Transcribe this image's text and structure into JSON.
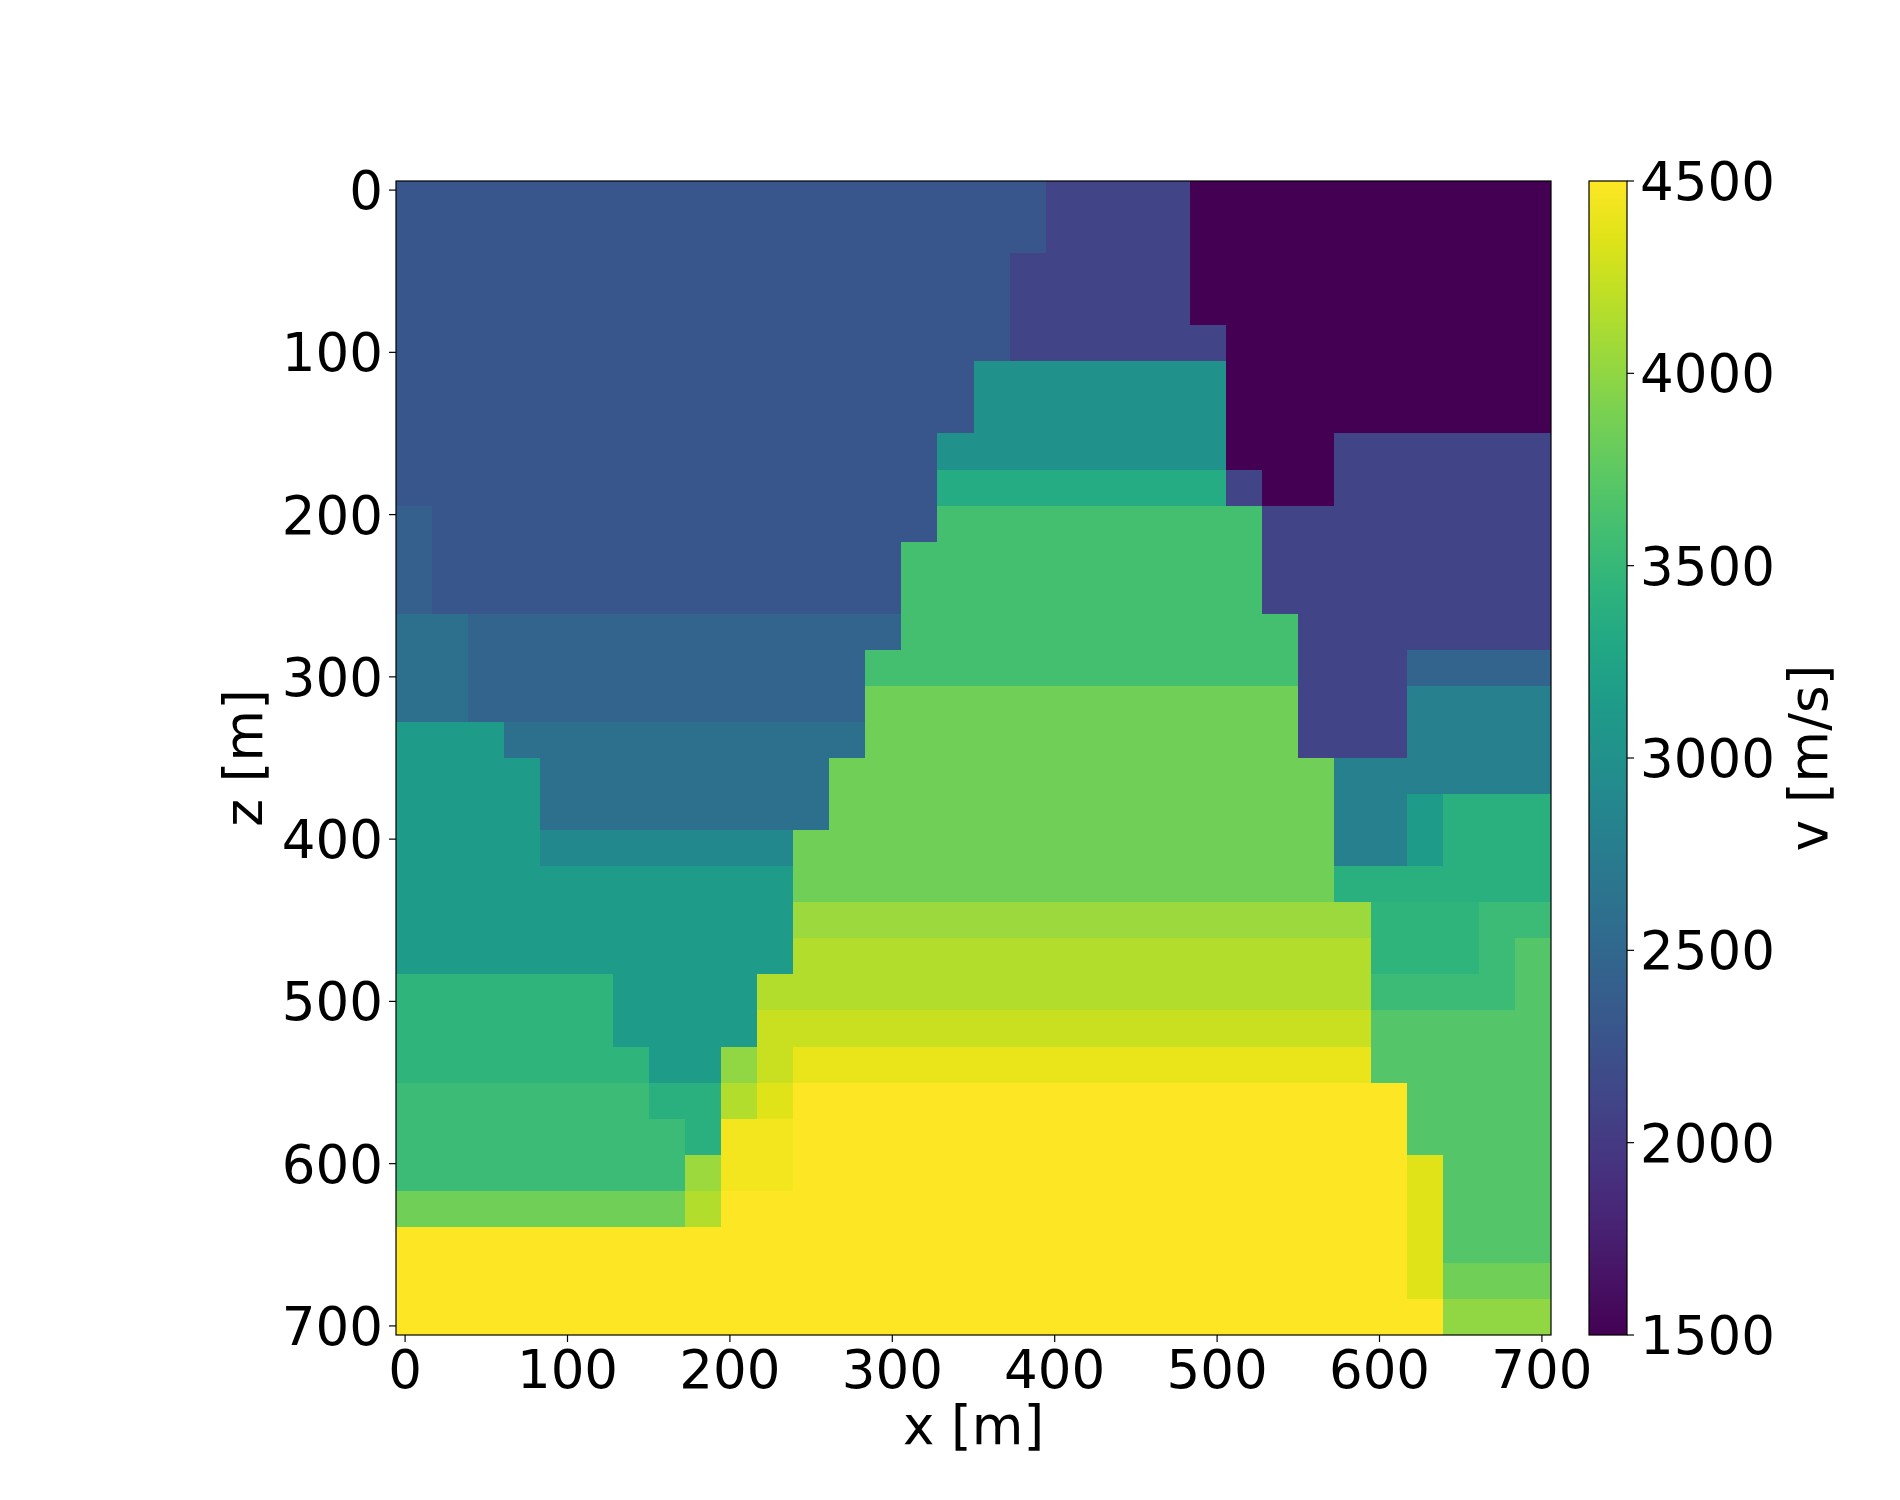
{
  "chart_data": {
    "type": "heatmap",
    "xlabel": "x [m]",
    "ylabel": "z [m]",
    "clabel": "v [m/s]",
    "xlim": [
      -5.6,
      705.6
    ],
    "ylim": [
      705.6,
      -5.6
    ],
    "xticks": [
      0,
      100,
      200,
      300,
      400,
      500,
      600,
      700
    ],
    "yticks": [
      0,
      100,
      200,
      300,
      400,
      500,
      600,
      700
    ],
    "clim": [
      1500,
      4500
    ],
    "cticks": [
      1500,
      2000,
      2500,
      3000,
      3500,
      4000,
      4500
    ],
    "cells": [
      [
        2300,
        2300,
        2300,
        2300,
        2300,
        2300,
        2300,
        2300,
        2300,
        2300,
        2300,
        2300,
        2300,
        2300,
        2300,
        2300,
        2300,
        2300,
        2100,
        2100,
        2100,
        2100,
        1500,
        1500,
        1500,
        1500,
        1500,
        1500,
        1500,
        1500,
        1500,
        1500
      ],
      [
        2300,
        2300,
        2300,
        2300,
        2300,
        2300,
        2300,
        2300,
        2300,
        2300,
        2300,
        2300,
        2300,
        2300,
        2300,
        2300,
        2300,
        2300,
        2100,
        2100,
        2100,
        2100,
        1500,
        1500,
        1500,
        1500,
        1500,
        1500,
        1500,
        1500,
        1500,
        1500
      ],
      [
        2300,
        2300,
        2300,
        2300,
        2300,
        2300,
        2300,
        2300,
        2300,
        2300,
        2300,
        2300,
        2300,
        2300,
        2300,
        2300,
        2300,
        2100,
        2100,
        2100,
        2100,
        2100,
        1500,
        1500,
        1500,
        1500,
        1500,
        1500,
        1500,
        1500,
        1500,
        1500
      ],
      [
        2300,
        2300,
        2300,
        2300,
        2300,
        2300,
        2300,
        2300,
        2300,
        2300,
        2300,
        2300,
        2300,
        2300,
        2300,
        2300,
        2300,
        2100,
        2100,
        2100,
        2100,
        2100,
        1500,
        1500,
        1500,
        1500,
        1500,
        1500,
        1500,
        1500,
        1500,
        1500
      ],
      [
        2300,
        2300,
        2300,
        2300,
        2300,
        2300,
        2300,
        2300,
        2300,
        2300,
        2300,
        2300,
        2300,
        2300,
        2300,
        2300,
        2300,
        2100,
        2100,
        2100,
        2100,
        2100,
        2100,
        1500,
        1500,
        1500,
        1500,
        1500,
        1500,
        1500,
        1500,
        1500
      ],
      [
        2300,
        2300,
        2300,
        2300,
        2300,
        2300,
        2300,
        2300,
        2300,
        2300,
        2300,
        2300,
        2300,
        2300,
        2300,
        2300,
        3000,
        3000,
        3000,
        3000,
        3000,
        3000,
        3000,
        1500,
        1500,
        1500,
        1500,
        1500,
        1500,
        1500,
        1500,
        1500
      ],
      [
        2300,
        2300,
        2300,
        2300,
        2300,
        2300,
        2300,
        2300,
        2300,
        2300,
        2300,
        2300,
        2300,
        2300,
        2300,
        2300,
        3000,
        3000,
        3000,
        3000,
        3000,
        3000,
        3000,
        1500,
        1500,
        1500,
        1500,
        1500,
        1500,
        1500,
        1500,
        1500
      ],
      [
        2300,
        2300,
        2300,
        2300,
        2300,
        2300,
        2300,
        2300,
        2300,
        2300,
        2300,
        2300,
        2300,
        2300,
        2300,
        3000,
        3000,
        3000,
        3000,
        3000,
        3000,
        3000,
        3000,
        1500,
        1500,
        1500,
        2100,
        2100,
        2100,
        2100,
        2100,
        2100
      ],
      [
        2300,
        2300,
        2300,
        2300,
        2300,
        2300,
        2300,
        2300,
        2300,
        2300,
        2300,
        2300,
        2300,
        2300,
        2300,
        3350,
        3350,
        3350,
        3350,
        3350,
        3350,
        3350,
        3350,
        2100,
        1500,
        1500,
        2100,
        2100,
        2100,
        2100,
        2100,
        2100
      ],
      [
        2400,
        2300,
        2300,
        2300,
        2300,
        2300,
        2300,
        2300,
        2300,
        2300,
        2300,
        2300,
        2300,
        2300,
        2300,
        3600,
        3600,
        3600,
        3600,
        3600,
        3600,
        3600,
        3600,
        3600,
        2100,
        2100,
        2100,
        2100,
        2100,
        2100,
        2100,
        2100
      ],
      [
        2400,
        2300,
        2300,
        2300,
        2300,
        2300,
        2300,
        2300,
        2300,
        2300,
        2300,
        2300,
        2300,
        2300,
        3600,
        3600,
        3600,
        3600,
        3600,
        3600,
        3600,
        3600,
        3600,
        3600,
        2100,
        2100,
        2100,
        2100,
        2100,
        2100,
        2100,
        2100
      ],
      [
        2400,
        2300,
        2300,
        2300,
        2300,
        2300,
        2300,
        2300,
        2300,
        2300,
        2300,
        2300,
        2300,
        2300,
        3600,
        3600,
        3600,
        3600,
        3600,
        3600,
        3600,
        3600,
        3600,
        3600,
        2100,
        2100,
        2100,
        2100,
        2100,
        2100,
        2100,
        2100
      ],
      [
        2600,
        2600,
        2450,
        2450,
        2450,
        2450,
        2450,
        2450,
        2450,
        2450,
        2450,
        2450,
        2450,
        2450,
        3600,
        3600,
        3600,
        3600,
        3600,
        3600,
        3600,
        3600,
        3600,
        3600,
        3600,
        2100,
        2100,
        2100,
        2100,
        2100,
        2100,
        2100
      ],
      [
        2600,
        2600,
        2450,
        2450,
        2450,
        2450,
        2450,
        2450,
        2450,
        2450,
        2450,
        2450,
        2450,
        3600,
        3600,
        3600,
        3600,
        3600,
        3600,
        3600,
        3600,
        3600,
        3600,
        3600,
        3600,
        2100,
        2100,
        2100,
        2450,
        2450,
        2450,
        2450
      ],
      [
        2600,
        2600,
        2450,
        2450,
        2450,
        2450,
        2450,
        2450,
        2450,
        2450,
        2450,
        2450,
        2450,
        3850,
        3850,
        3850,
        3850,
        3850,
        3850,
        3850,
        3850,
        3850,
        3850,
        3850,
        3850,
        2100,
        2100,
        2100,
        2800,
        2800,
        2800,
        2800
      ],
      [
        3150,
        3150,
        3150,
        2600,
        2600,
        2600,
        2600,
        2600,
        2600,
        2600,
        2600,
        2600,
        2600,
        3850,
        3850,
        3850,
        3850,
        3850,
        3850,
        3850,
        3850,
        3850,
        3850,
        3850,
        3850,
        2100,
        2100,
        2100,
        2800,
        2800,
        2800,
        2800
      ],
      [
        3150,
        3150,
        3150,
        3150,
        2600,
        2600,
        2600,
        2600,
        2600,
        2600,
        2600,
        2600,
        3850,
        3850,
        3850,
        3850,
        3850,
        3850,
        3850,
        3850,
        3850,
        3850,
        3850,
        3850,
        3850,
        3850,
        2800,
        2800,
        2800,
        2800,
        2800,
        2800
      ],
      [
        3150,
        3150,
        3150,
        3150,
        2600,
        2600,
        2600,
        2600,
        2600,
        2600,
        2600,
        2600,
        3850,
        3850,
        3850,
        3850,
        3850,
        3850,
        3850,
        3850,
        3850,
        3850,
        3850,
        3850,
        3850,
        3850,
        2800,
        2800,
        3150,
        3400,
        3400,
        3400
      ],
      [
        3150,
        3150,
        3150,
        3150,
        2900,
        2900,
        2900,
        2900,
        2900,
        2900,
        2900,
        3850,
        3850,
        3850,
        3850,
        3850,
        3850,
        3850,
        3850,
        3850,
        3850,
        3850,
        3850,
        3850,
        3850,
        3850,
        2800,
        2800,
        3150,
        3400,
        3400,
        3400
      ],
      [
        3150,
        3150,
        3150,
        3150,
        3150,
        3150,
        3150,
        3150,
        3150,
        3150,
        3150,
        3850,
        3850,
        3850,
        3850,
        3850,
        3850,
        3850,
        3850,
        3850,
        3850,
        3850,
        3850,
        3850,
        3850,
        3850,
        3400,
        3400,
        3400,
        3400,
        3400,
        3400
      ],
      [
        3150,
        3150,
        3150,
        3150,
        3150,
        3150,
        3150,
        3150,
        3150,
        3150,
        3150,
        4050,
        4050,
        4050,
        4050,
        4050,
        4050,
        4050,
        4050,
        4050,
        4050,
        4050,
        4050,
        4050,
        4050,
        4050,
        4050,
        3450,
        3450,
        3450,
        3550,
        3550
      ],
      [
        3150,
        3150,
        3150,
        3150,
        3150,
        3150,
        3150,
        3150,
        3150,
        3150,
        3150,
        4150,
        4150,
        4150,
        4150,
        4150,
        4150,
        4150,
        4150,
        4150,
        4150,
        4150,
        4150,
        4150,
        4150,
        4150,
        4150,
        3450,
        3450,
        3450,
        3550,
        3700
      ],
      [
        3450,
        3450,
        3450,
        3450,
        3450,
        3450,
        3150,
        3150,
        3150,
        3150,
        4150,
        4150,
        4150,
        4150,
        4150,
        4150,
        4150,
        4150,
        4150,
        4150,
        4150,
        4150,
        4150,
        4150,
        4150,
        4150,
        4150,
        3550,
        3550,
        3550,
        3550,
        3700
      ],
      [
        3450,
        3450,
        3450,
        3450,
        3450,
        3450,
        3150,
        3150,
        3150,
        3150,
        4250,
        4250,
        4250,
        4250,
        4250,
        4250,
        4250,
        4250,
        4250,
        4250,
        4250,
        4250,
        4250,
        4250,
        4250,
        4250,
        4250,
        3700,
        3700,
        3700,
        3700,
        3700
      ],
      [
        3450,
        3450,
        3450,
        3450,
        3450,
        3450,
        3450,
        3150,
        3150,
        4000,
        4250,
        4400,
        4400,
        4400,
        4400,
        4400,
        4400,
        4400,
        4400,
        4400,
        4400,
        4400,
        4400,
        4400,
        4400,
        4400,
        4400,
        3700,
        3700,
        3700,
        3700,
        3700
      ],
      [
        3550,
        3550,
        3550,
        3550,
        3550,
        3550,
        3550,
        3400,
        3400,
        4150,
        4350,
        4500,
        4500,
        4500,
        4500,
        4500,
        4500,
        4500,
        4500,
        4500,
        4500,
        4500,
        4500,
        4500,
        4500,
        4500,
        4500,
        4500,
        3700,
        3700,
        3700,
        3700
      ],
      [
        3550,
        3550,
        3550,
        3550,
        3550,
        3550,
        3550,
        3550,
        3400,
        4450,
        4450,
        4500,
        4500,
        4500,
        4500,
        4500,
        4500,
        4500,
        4500,
        4500,
        4500,
        4500,
        4500,
        4500,
        4500,
        4500,
        4500,
        4500,
        3700,
        3700,
        3700,
        3700
      ],
      [
        3550,
        3550,
        3550,
        3550,
        3550,
        3550,
        3550,
        3550,
        4050,
        4450,
        4450,
        4500,
        4500,
        4500,
        4500,
        4500,
        4500,
        4500,
        4500,
        4500,
        4500,
        4500,
        4500,
        4500,
        4500,
        4500,
        4500,
        4500,
        4350,
        3700,
        3700,
        3700
      ],
      [
        3850,
        3850,
        3850,
        3850,
        3850,
        3850,
        3850,
        3850,
        4150,
        4500,
        4500,
        4500,
        4500,
        4500,
        4500,
        4500,
        4500,
        4500,
        4500,
        4500,
        4500,
        4500,
        4500,
        4500,
        4500,
        4500,
        4500,
        4500,
        4350,
        3700,
        3700,
        3700
      ],
      [
        4500,
        4500,
        4500,
        4500,
        4500,
        4500,
        4500,
        4500,
        4500,
        4500,
        4500,
        4500,
        4500,
        4500,
        4500,
        4500,
        4500,
        4500,
        4500,
        4500,
        4500,
        4500,
        4500,
        4500,
        4500,
        4500,
        4500,
        4500,
        4350,
        3700,
        3700,
        3700
      ],
      [
        4500,
        4500,
        4500,
        4500,
        4500,
        4500,
        4500,
        4500,
        4500,
        4500,
        4500,
        4500,
        4500,
        4500,
        4500,
        4500,
        4500,
        4500,
        4500,
        4500,
        4500,
        4500,
        4500,
        4500,
        4500,
        4500,
        4500,
        4500,
        4350,
        3850,
        3850,
        3850
      ],
      [
        4500,
        4500,
        4500,
        4500,
        4500,
        4500,
        4500,
        4500,
        4500,
        4500,
        4500,
        4500,
        4500,
        4500,
        4500,
        4500,
        4500,
        4500,
        4500,
        4500,
        4500,
        4500,
        4500,
        4500,
        4500,
        4500,
        4500,
        4500,
        4500,
        4000,
        4000,
        4000
      ]
    ]
  }
}
